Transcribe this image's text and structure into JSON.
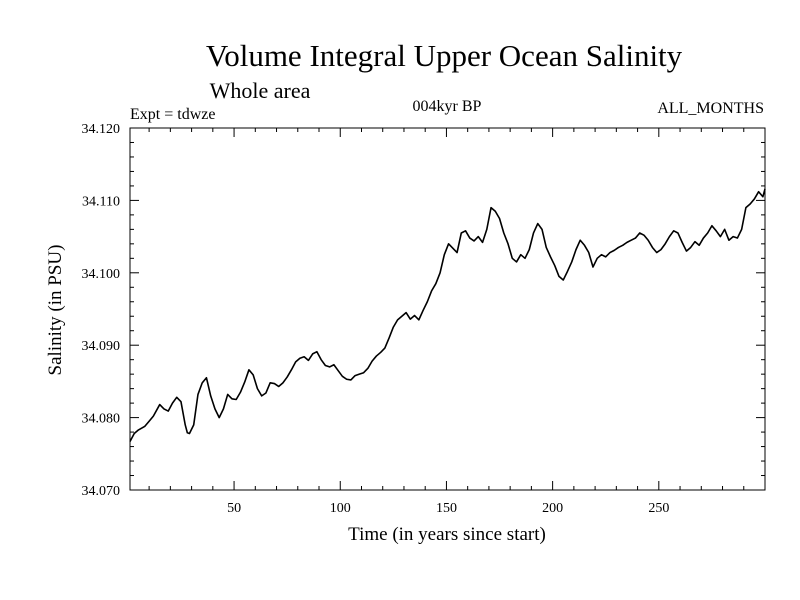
{
  "chart_data": {
    "type": "line",
    "title": "Volume Integral Upper Ocean Salinity",
    "subtitle": "Whole area",
    "annotations": {
      "left": "Expt = tdwze",
      "center": "004kyr BP",
      "right": "ALL_MONTHS"
    },
    "xlabel": "Time (in years since start)",
    "ylabel": "Salinity (in PSU)",
    "xlim": [
      1,
      300
    ],
    "ylim": [
      34.07,
      34.12
    ],
    "xticks": [
      50,
      100,
      150,
      200,
      250
    ],
    "xtick_labels": [
      "50",
      "100",
      "150",
      "200",
      "250"
    ],
    "yticks": [
      34.07,
      34.08,
      34.09,
      34.1,
      34.11,
      34.12
    ],
    "ytick_labels": [
      "34.070",
      "34.080",
      "34.090",
      "34.100",
      "34.110",
      "34.120"
    ],
    "grid": false,
    "colors": {
      "line": "#000000",
      "axes": "#000000"
    },
    "series": [
      {
        "x": [
          1,
          3,
          5,
          8,
          10,
          12,
          15,
          17,
          19,
          21,
          23,
          25,
          27,
          28,
          29,
          31,
          33,
          35,
          37,
          39,
          41,
          43,
          45,
          47,
          49,
          51,
          53,
          55,
          57,
          59,
          61,
          63,
          65,
          67,
          69,
          71,
          73,
          75,
          77,
          79,
          81,
          83,
          85,
          87,
          89,
          91,
          93,
          95,
          97,
          99,
          101,
          103,
          105,
          107,
          109,
          111,
          113,
          115,
          117,
          119,
          121,
          123,
          125,
          127,
          129,
          131,
          133,
          135,
          137,
          139,
          141,
          143,
          145,
          147,
          149,
          151,
          153,
          155,
          157,
          159,
          161,
          163,
          165,
          167,
          169,
          171,
          173,
          175,
          177,
          179,
          181,
          183,
          185,
          187,
          189,
          191,
          193,
          195,
          197,
          199,
          201,
          203,
          205,
          207,
          209,
          211,
          213,
          215,
          217,
          219,
          221,
          223,
          225,
          227,
          229,
          231,
          233,
          235,
          237,
          239,
          241,
          243,
          245,
          247,
          249,
          251,
          253,
          255,
          257,
          259,
          261,
          263,
          265,
          267,
          269,
          271,
          273,
          275,
          277,
          279,
          281,
          283,
          285,
          287,
          289,
          291,
          293,
          295,
          297,
          299,
          300
        ],
        "y": [
          34.0767,
          34.0778,
          34.0783,
          34.0788,
          34.0795,
          34.0802,
          34.0818,
          34.0812,
          34.0809,
          34.082,
          34.0828,
          34.0822,
          34.079,
          34.0779,
          34.0778,
          34.079,
          34.0832,
          34.0848,
          34.0855,
          34.083,
          34.0812,
          34.08,
          34.0812,
          34.0832,
          34.0826,
          34.0825,
          34.0835,
          34.0849,
          34.0866,
          34.0859,
          34.084,
          34.083,
          34.0834,
          34.0848,
          34.0847,
          34.0843,
          34.0848,
          34.0856,
          34.0866,
          34.0877,
          34.0882,
          34.0884,
          34.0879,
          34.0888,
          34.0891,
          34.088,
          34.0872,
          34.087,
          34.0873,
          34.0865,
          34.0857,
          34.0853,
          34.0852,
          34.0858,
          34.086,
          34.0862,
          34.0868,
          34.0878,
          34.0885,
          34.089,
          34.0896,
          34.091,
          34.0925,
          34.0935,
          34.094,
          34.0945,
          34.0936,
          34.0941,
          34.0935,
          34.0948,
          34.096,
          34.0975,
          34.0985,
          34.1,
          34.1025,
          34.104,
          34.1034,
          34.1028,
          34.1055,
          34.1058,
          34.1048,
          34.1044,
          34.105,
          34.1042,
          34.106,
          34.109,
          34.1085,
          34.1075,
          34.1055,
          34.104,
          34.102,
          34.1015,
          34.1025,
          34.102,
          34.1032,
          34.1055,
          34.1068,
          34.106,
          34.1035,
          34.1022,
          34.101,
          34.0995,
          34.099,
          34.1002,
          34.1015,
          34.1032,
          34.1045,
          34.1038,
          34.1028,
          34.1008,
          34.102,
          34.1025,
          34.1022,
          34.1028,
          34.1031,
          34.1035,
          34.1038,
          34.1042,
          34.1045,
          34.1048,
          34.1055,
          34.1052,
          34.1045,
          34.1035,
          34.1028,
          34.1032,
          34.104,
          34.105,
          34.1058,
          34.1055,
          34.1042,
          34.103,
          34.1035,
          34.1043,
          34.1038,
          34.1048,
          34.1055,
          34.1065,
          34.1058,
          34.105,
          34.106,
          34.1045,
          34.105,
          34.1048,
          34.106,
          34.109,
          34.1095,
          34.1102,
          34.1112,
          34.1105,
          34.1116
        ]
      }
    ]
  }
}
